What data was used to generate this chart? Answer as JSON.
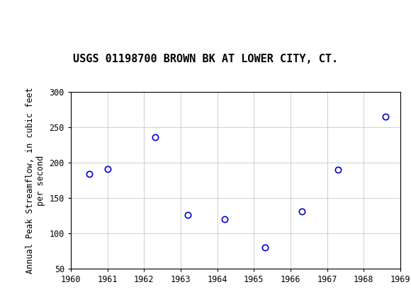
{
  "title": "USGS 01198700 BROWN BK AT LOWER CITY, CT.",
  "ylabel": "Annual Peak Streamflow, in cubic feet\nper second",
  "years": [
    1960.5,
    1961.0,
    1962.3,
    1963.2,
    1964.2,
    1965.3,
    1966.3,
    1967.3,
    1968.6
  ],
  "values": [
    184,
    191,
    236,
    126,
    120,
    80,
    131,
    190,
    265
  ],
  "xlim": [
    1960,
    1969
  ],
  "ylim": [
    50,
    300
  ],
  "xticks": [
    1960,
    1961,
    1962,
    1963,
    1964,
    1965,
    1966,
    1967,
    1968,
    1969
  ],
  "yticks": [
    50,
    100,
    150,
    200,
    250,
    300
  ],
  "marker_color": "#0000cc",
  "marker_size": 6,
  "marker_facecolor": "none",
  "marker_linewidth": 1.2,
  "grid_color": "#bbbbbb",
  "grid_linewidth": 0.5,
  "header_color": "#1a6b3c",
  "title_fontsize": 11,
  "ylabel_fontsize": 8.5,
  "tick_fontsize": 8.5,
  "background_color": "#ffffff",
  "border_color": "#000000",
  "fig_width": 5.8,
  "fig_height": 4.3,
  "fig_dpi": 100
}
